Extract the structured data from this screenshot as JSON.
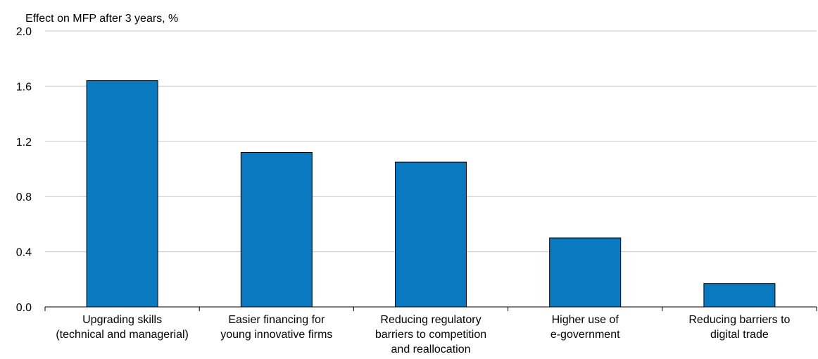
{
  "chart_data": {
    "type": "bar",
    "ylabel": "Effect on MFP after 3 years, %",
    "categories": [
      [
        "Upgrading skills",
        "(technical and managerial)"
      ],
      [
        "Easier financing for",
        "young innovative firms"
      ],
      [
        "Reducing regulatory",
        "barriers to competition",
        "and reallocation"
      ],
      [
        "Higher use of",
        "e-government"
      ],
      [
        "Reducing barriers to",
        "digital trade"
      ]
    ],
    "values": [
      1.64,
      1.12,
      1.05,
      0.5,
      0.17
    ],
    "ylim": [
      0,
      2.0
    ],
    "yticks": [
      "0.0",
      "0.4",
      "0.8",
      "1.2",
      "1.6",
      "2.0"
    ],
    "grid": true,
    "colors": {
      "bar": "#0a7ac0",
      "bar_stroke": "#000000",
      "grid": "#c8c8c8",
      "axis": "#000000"
    }
  }
}
